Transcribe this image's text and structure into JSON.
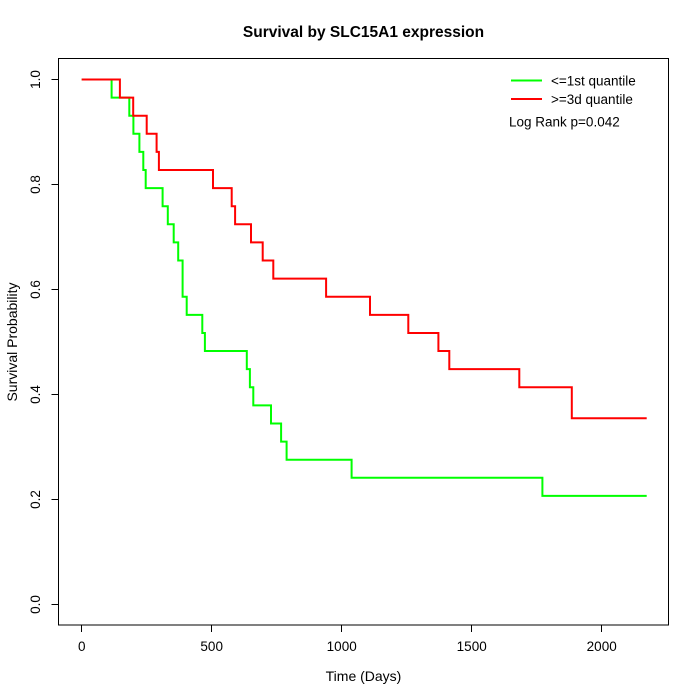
{
  "chart_data": {
    "type": "line",
    "subtype": "kaplan-meier-step",
    "title": "Survival by SLC15A1 expression",
    "xlabel": "Time (Days)",
    "ylabel": "Survival Probability",
    "x_ticks": [
      0,
      500,
      1000,
      1500,
      2000
    ],
    "y_ticks": [
      0.0,
      0.2,
      0.4,
      0.6,
      0.8,
      1.0
    ],
    "y_tick_labels": [
      "0.0",
      "0.2",
      "0.4",
      "0.6",
      "0.8",
      "1.0"
    ],
    "xlim": [
      0,
      2260
    ],
    "ylim": [
      0,
      1
    ],
    "grid": false,
    "legend_position": "top-right",
    "annotation": "Log Rank p=0.042",
    "series": [
      {
        "name": "<=1st quantile",
        "color": "#00FF00",
        "end_time": 2173,
        "steps": [
          [
            0,
            1.0
          ],
          [
            115,
            0.9655
          ],
          [
            183,
            0.931
          ],
          [
            199,
            0.8966
          ],
          [
            222,
            0.862
          ],
          [
            237,
            0.8276
          ],
          [
            246,
            0.7931
          ],
          [
            311,
            0.7586
          ],
          [
            331,
            0.7241
          ],
          [
            354,
            0.6897
          ],
          [
            371,
            0.6552
          ],
          [
            388,
            0.5862
          ],
          [
            404,
            0.5517
          ],
          [
            464,
            0.5172
          ],
          [
            474,
            0.4828
          ],
          [
            635,
            0.4483
          ],
          [
            647,
            0.4138
          ],
          [
            660,
            0.3793
          ],
          [
            728,
            0.3448
          ],
          [
            767,
            0.3103
          ],
          [
            788,
            0.2759
          ],
          [
            1038,
            0.2414
          ],
          [
            1772,
            0.2069
          ]
        ]
      },
      {
        "name": ">=3d quantile",
        "color": "#FF0000",
        "end_time": 2173,
        "steps": [
          [
            0,
            1.0
          ],
          [
            147,
            0.9655
          ],
          [
            198,
            0.931
          ],
          [
            250,
            0.8966
          ],
          [
            288,
            0.862
          ],
          [
            297,
            0.8276
          ],
          [
            505,
            0.7931
          ],
          [
            577,
            0.7586
          ],
          [
            590,
            0.7241
          ],
          [
            651,
            0.6897
          ],
          [
            696,
            0.6552
          ],
          [
            737,
            0.6207
          ],
          [
            940,
            0.5862
          ],
          [
            1109,
            0.5517
          ],
          [
            1256,
            0.5172
          ],
          [
            1372,
            0.4828
          ],
          [
            1414,
            0.4483
          ],
          [
            1683,
            0.4138
          ],
          [
            1885,
            0.3547
          ]
        ]
      }
    ]
  },
  "colors": {
    "axis": "#000000",
    "background": "#FFFFFF"
  }
}
